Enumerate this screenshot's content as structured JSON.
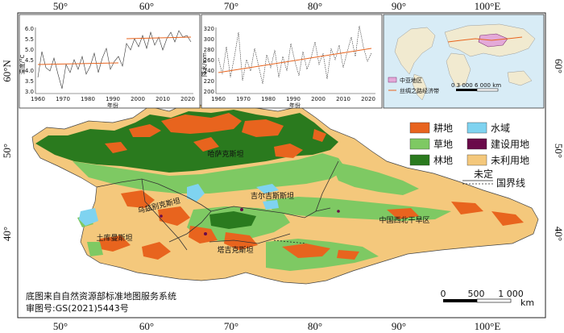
{
  "coords": {
    "top_lon": [
      "50°",
      "60°",
      "70°",
      "80°",
      "90°",
      "100°E"
    ],
    "bottom_lon": [
      "50°",
      "60°",
      "70°",
      "80°",
      "90°",
      "100°E"
    ],
    "left_lat": [
      "60°N",
      "50°",
      "40°"
    ],
    "right_lat": [
      "60°",
      "50°",
      "40°"
    ]
  },
  "inset_left": {
    "ylabel": "温度/°C",
    "xlabel": "年份",
    "yticks": [
      "6.0",
      "5.5",
      "5.0",
      "4.5",
      "4.0",
      "3.5",
      "3.0"
    ],
    "xticks": [
      "1960",
      "1970",
      "1980",
      "1990",
      "2000",
      "2010",
      "2020"
    ]
  },
  "inset_middle": {
    "ylabel": "降水/mm",
    "xlabel": "年份",
    "yticks": [
      "320",
      "300",
      "280",
      "260",
      "240",
      "220",
      "200"
    ],
    "xticks": [
      "1960",
      "1970",
      "1980",
      "1990",
      "2000",
      "2010",
      "2020"
    ]
  },
  "inset_right": {
    "legend_central_asia": "中亚地区",
    "legend_silk_road": "丝绸之路经济带",
    "scale_text": "0  3 000 6 000 km"
  },
  "countries": {
    "kazakhstan": "哈萨克斯坦",
    "uzbekistan": "乌兹别克斯坦",
    "kyrgyzstan": "吉尔吉斯斯坦",
    "turkmenistan": "土库曼斯坦",
    "tajikistan": "塔吉克斯坦",
    "nw_china": "中国西北干旱区"
  },
  "legend": {
    "items": [
      {
        "label": "耕地",
        "color": "#e8641e"
      },
      {
        "label": "水域",
        "color": "#7fd3f0"
      },
      {
        "label": "草地",
        "color": "#7ec963"
      },
      {
        "label": "建设用地",
        "color": "#6a0a4a"
      },
      {
        "label": "林地",
        "color": "#2a7a1e"
      },
      {
        "label": "未利用地",
        "color": "#f4c87c"
      }
    ],
    "boundary_undetermined": "未定",
    "boundary": "国界线"
  },
  "source": {
    "line1": "底图来自自然资源部标准地图服务系统",
    "line2": "审图号:GS(2021)5443号"
  },
  "scalebar": {
    "t0": "0",
    "t500": "500",
    "t1000": "1 000",
    "unit": "km"
  }
}
